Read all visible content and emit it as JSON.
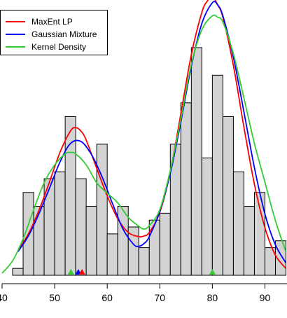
{
  "chart_data": {
    "type": "histogram",
    "title": "",
    "xlabel": "",
    "ylabel": "",
    "xlim": [
      39.6,
      94.2
    ],
    "bin_width": 2,
    "bin_starts": [
      42,
      44,
      46,
      48,
      50,
      52,
      54,
      56,
      58,
      60,
      62,
      64,
      66,
      68,
      70,
      72,
      74,
      76,
      78,
      80,
      82,
      84,
      86,
      88,
      90,
      92
    ],
    "bin_counts": [
      1,
      12,
      10,
      14,
      15,
      23,
      14,
      10,
      19,
      6,
      10,
      7,
      4,
      8,
      9,
      19,
      25,
      33,
      17,
      29,
      23,
      15,
      10,
      12,
      4,
      5
    ],
    "x_ticks": [
      "40",
      "50",
      "60",
      "70",
      "80",
      "90"
    ],
    "bar_color": "#d3d3d3",
    "series": [
      {
        "name": "MaxEnt LP",
        "color": "#ff0000",
        "x": [
          43,
          45,
          47,
          49,
          51,
          53,
          54,
          55,
          56,
          58,
          60,
          62,
          64,
          66,
          67,
          68,
          70,
          72,
          74,
          76,
          78,
          79,
          80,
          81,
          82,
          84,
          86,
          88,
          90,
          92,
          94
        ],
        "y": [
          3.6,
          6.0,
          9.4,
          13.5,
          17.8,
          20.9,
          21.4,
          20.9,
          19.6,
          15.5,
          11.5,
          8.2,
          6.2,
          5.6,
          5.7,
          6.2,
          9.1,
          15.0,
          23.4,
          32.0,
          38.1,
          39.7,
          40.4,
          39.2,
          37.4,
          30.4,
          21.5,
          13.2,
          6.9,
          2.9,
          1.0
        ]
      },
      {
        "name": "Gaussian Mixture",
        "color": "#0000ff",
        "x": [
          43,
          45,
          47,
          49,
          51,
          53,
          55,
          57,
          59,
          61,
          63,
          65,
          66,
          67,
          68,
          70,
          72,
          74,
          76,
          78,
          80,
          81,
          82,
          84,
          86,
          88,
          90,
          92,
          94
        ],
        "y": [
          3.4,
          5.7,
          8.9,
          12.6,
          16.4,
          19.1,
          19.4,
          17.5,
          14.3,
          10.4,
          6.7,
          4.5,
          4.2,
          4.6,
          5.6,
          9.3,
          14.8,
          22.2,
          30.3,
          36.5,
          39.5,
          39.2,
          37.6,
          31.6,
          23.7,
          15.6,
          8.9,
          4.4,
          1.8
        ]
      },
      {
        "name": "Kernel Density",
        "color": "#33cc33",
        "x": [
          40,
          42,
          44,
          46,
          48,
          50,
          52,
          53,
          54,
          56,
          58,
          60,
          62,
          64,
          66,
          67,
          68,
          70,
          72,
          74,
          76,
          78,
          80,
          81,
          82,
          84,
          86,
          88,
          90,
          92,
          94
        ],
        "y": [
          0.3,
          2.1,
          5.3,
          9.5,
          13.4,
          16.0,
          17.6,
          17.8,
          17.6,
          16.0,
          13.4,
          11.9,
          10.5,
          8.4,
          7.1,
          6.7,
          7.2,
          9.5,
          15.2,
          22.6,
          30.6,
          35.6,
          37.6,
          37.4,
          36.7,
          32.1,
          25.7,
          19.1,
          13.5,
          7.9,
          3.4
        ]
      }
    ],
    "markers": [
      {
        "x": 53.1,
        "color": "#33cc33"
      },
      {
        "x": 54.5,
        "color": "#0000ff"
      },
      {
        "x": 55.2,
        "color": "#ff0000"
      },
      {
        "x": 80.0,
        "color": "#33cc33"
      }
    ],
    "legend_position": "top-left"
  }
}
